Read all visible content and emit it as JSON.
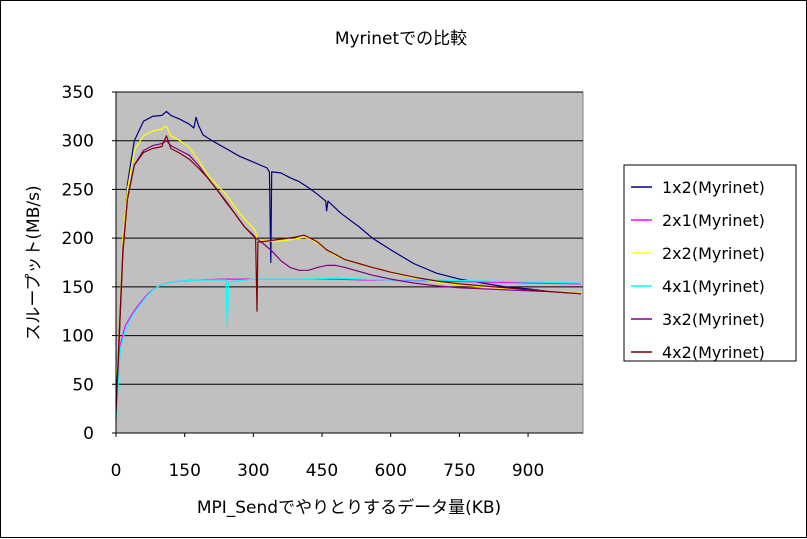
{
  "chart_data": {
    "type": "line",
    "title": "Myrinetでの比較",
    "xlabel": "MPI_Sendでやりとりするデータ量(KB)",
    "ylabel": "スループット(MB/s)",
    "xlim": [
      0,
      1020
    ],
    "ylim": [
      0,
      350
    ],
    "x_ticks": [
      0,
      150,
      300,
      450,
      600,
      750,
      900
    ],
    "x_tick_labels": [
      "0",
      "150",
      "300",
      "450",
      "600",
      "750",
      "900"
    ],
    "y_ticks": [
      0,
      50,
      100,
      150,
      200,
      250,
      300,
      350
    ],
    "y_tick_labels": [
      "0",
      "50",
      "100",
      "150",
      "200",
      "250",
      "300",
      "350"
    ],
    "grid": "horizontal",
    "legend_position": "right",
    "plot_background": "#c0c0c0",
    "series": [
      {
        "name": "1x2(Myrinet)",
        "color": "#000080",
        "points": [
          [
            0,
            15
          ],
          [
            8,
            110
          ],
          [
            15,
            190
          ],
          [
            25,
            255
          ],
          [
            40,
            300
          ],
          [
            60,
            320
          ],
          [
            80,
            325
          ],
          [
            100,
            326
          ],
          [
            110,
            330
          ],
          [
            120,
            326
          ],
          [
            140,
            322
          ],
          [
            160,
            317
          ],
          [
            170,
            313
          ],
          [
            175,
            324
          ],
          [
            180,
            316
          ],
          [
            190,
            306
          ],
          [
            210,
            300
          ],
          [
            240,
            292
          ],
          [
            270,
            284
          ],
          [
            300,
            278
          ],
          [
            330,
            272
          ],
          [
            335,
            268
          ],
          [
            338,
            175
          ],
          [
            340,
            268
          ],
          [
            360,
            267
          ],
          [
            380,
            262
          ],
          [
            400,
            258
          ],
          [
            420,
            252
          ],
          [
            440,
            245
          ],
          [
            458,
            238
          ],
          [
            460,
            228
          ],
          [
            463,
            238
          ],
          [
            490,
            226
          ],
          [
            530,
            212
          ],
          [
            560,
            200
          ],
          [
            600,
            188
          ],
          [
            650,
            174
          ],
          [
            700,
            164
          ],
          [
            750,
            158
          ],
          [
            800,
            154
          ],
          [
            850,
            150
          ],
          [
            900,
            148
          ],
          [
            950,
            145
          ],
          [
            1015,
            143
          ]
        ]
      },
      {
        "name": "2x1(Myrinet)",
        "color": "#ff00ff",
        "points": [
          [
            0,
            20
          ],
          [
            10,
            92
          ],
          [
            20,
            110
          ],
          [
            35,
            122
          ],
          [
            50,
            132
          ],
          [
            70,
            143
          ],
          [
            90,
            150
          ],
          [
            110,
            154
          ],
          [
            140,
            156
          ],
          [
            180,
            157
          ],
          [
            230,
            158
          ],
          [
            300,
            158
          ],
          [
            360,
            158
          ],
          [
            420,
            158
          ],
          [
            480,
            158
          ],
          [
            540,
            157
          ],
          [
            600,
            157
          ],
          [
            700,
            156
          ],
          [
            800,
            155
          ],
          [
            900,
            154
          ],
          [
            1015,
            153
          ]
        ]
      },
      {
        "name": "2x2(Myrinet)",
        "color": "#ffff00",
        "points": [
          [
            0,
            35
          ],
          [
            8,
            120
          ],
          [
            15,
            200
          ],
          [
            25,
            250
          ],
          [
            40,
            290
          ],
          [
            60,
            305
          ],
          [
            80,
            310
          ],
          [
            100,
            312
          ],
          [
            110,
            315
          ],
          [
            120,
            305
          ],
          [
            140,
            300
          ],
          [
            160,
            293
          ],
          [
            180,
            280
          ],
          [
            200,
            265
          ],
          [
            220,
            255
          ],
          [
            240,
            245
          ],
          [
            260,
            232
          ],
          [
            280,
            220
          ],
          [
            300,
            210
          ],
          [
            305,
            207
          ],
          [
            308,
            199
          ],
          [
            312,
            198
          ],
          [
            330,
            197
          ],
          [
            360,
            197
          ],
          [
            390,
            199
          ],
          [
            410,
            201
          ],
          [
            420,
            200
          ],
          [
            440,
            195
          ],
          [
            460,
            188
          ],
          [
            480,
            182
          ],
          [
            500,
            178
          ],
          [
            530,
            174
          ],
          [
            560,
            170
          ],
          [
            600,
            165
          ],
          [
            650,
            159
          ],
          [
            700,
            155
          ],
          [
            750,
            152
          ],
          [
            800,
            150
          ],
          [
            850,
            148
          ],
          [
            900,
            147
          ],
          [
            950,
            145
          ],
          [
            1015,
            144
          ]
        ]
      },
      {
        "name": "4x1(Myrinet)",
        "color": "#00ffff",
        "points": [
          [
            0,
            15
          ],
          [
            10,
            88
          ],
          [
            20,
            105
          ],
          [
            35,
            120
          ],
          [
            50,
            130
          ],
          [
            70,
            142
          ],
          [
            90,
            150
          ],
          [
            110,
            154
          ],
          [
            140,
            156
          ],
          [
            180,
            157
          ],
          [
            230,
            157
          ],
          [
            240,
            157
          ],
          [
            243,
            110
          ],
          [
            246,
            155
          ],
          [
            300,
            158
          ],
          [
            360,
            158
          ],
          [
            420,
            158
          ],
          [
            480,
            159
          ],
          [
            540,
            158
          ],
          [
            600,
            157
          ],
          [
            700,
            157
          ],
          [
            800,
            156
          ],
          [
            900,
            155
          ],
          [
            1015,
            154
          ]
        ]
      },
      {
        "name": "3x2(Myrinet)",
        "color": "#800080",
        "points": [
          [
            0,
            25
          ],
          [
            8,
            115
          ],
          [
            15,
            190
          ],
          [
            25,
            240
          ],
          [
            40,
            275
          ],
          [
            60,
            290
          ],
          [
            80,
            295
          ],
          [
            100,
            297
          ],
          [
            110,
            300
          ],
          [
            120,
            295
          ],
          [
            140,
            290
          ],
          [
            160,
            285
          ],
          [
            180,
            275
          ],
          [
            200,
            262
          ],
          [
            220,
            250
          ],
          [
            240,
            237
          ],
          [
            260,
            225
          ],
          [
            280,
            212
          ],
          [
            300,
            202
          ],
          [
            320,
            195
          ],
          [
            340,
            187
          ],
          [
            360,
            177
          ],
          [
            380,
            170
          ],
          [
            400,
            167
          ],
          [
            420,
            167
          ],
          [
            440,
            170
          ],
          [
            460,
            172
          ],
          [
            480,
            172
          ],
          [
            500,
            170
          ],
          [
            530,
            166
          ],
          [
            560,
            162
          ],
          [
            600,
            158
          ],
          [
            650,
            154
          ],
          [
            700,
            151
          ],
          [
            750,
            149
          ],
          [
            800,
            148
          ],
          [
            850,
            147
          ],
          [
            900,
            146
          ],
          [
            950,
            145
          ],
          [
            1015,
            143
          ]
        ]
      },
      {
        "name": "4x2(Myrinet)",
        "color": "#800000",
        "points": [
          [
            0,
            20
          ],
          [
            8,
            110
          ],
          [
            15,
            185
          ],
          [
            25,
            240
          ],
          [
            40,
            275
          ],
          [
            60,
            288
          ],
          [
            80,
            292
          ],
          [
            100,
            294
          ],
          [
            110,
            305
          ],
          [
            120,
            292
          ],
          [
            140,
            287
          ],
          [
            160,
            281
          ],
          [
            180,
            272
          ],
          [
            200,
            262
          ],
          [
            220,
            250
          ],
          [
            240,
            238
          ],
          [
            260,
            225
          ],
          [
            280,
            212
          ],
          [
            300,
            203
          ],
          [
            305,
            200
          ],
          [
            308,
            125
          ],
          [
            310,
            196
          ],
          [
            330,
            197
          ],
          [
            360,
            199
          ],
          [
            390,
            201
          ],
          [
            410,
            203
          ],
          [
            420,
            201
          ],
          [
            440,
            196
          ],
          [
            460,
            188
          ],
          [
            480,
            183
          ],
          [
            500,
            178
          ],
          [
            530,
            174
          ],
          [
            560,
            170
          ],
          [
            600,
            165
          ],
          [
            650,
            160
          ],
          [
            700,
            156
          ],
          [
            750,
            153
          ],
          [
            800,
            151
          ],
          [
            850,
            149
          ],
          [
            900,
            147
          ],
          [
            950,
            145
          ],
          [
            1015,
            143
          ]
        ]
      }
    ]
  }
}
